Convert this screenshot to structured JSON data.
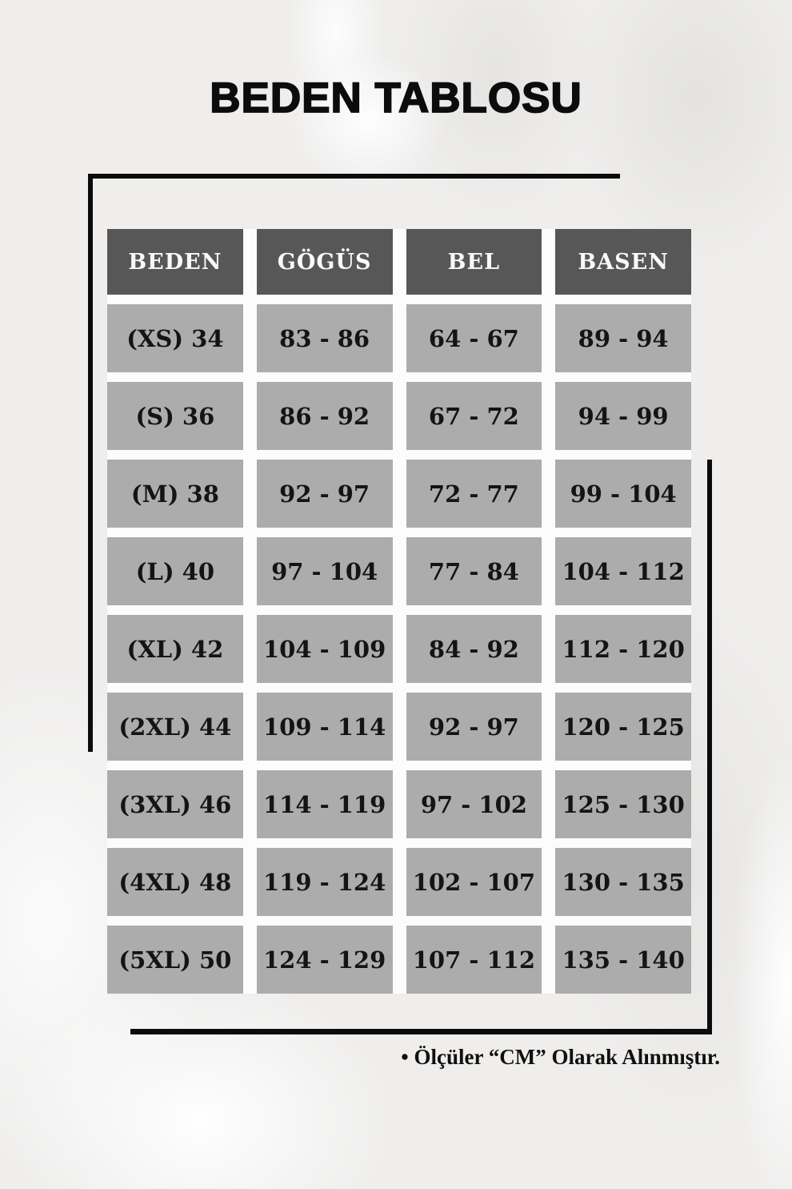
{
  "page_title": "BEDEN TABLOSU",
  "colors": {
    "background": "#efeeed",
    "header_cell_bg": "#585758",
    "header_cell_text": "#f8f8f8",
    "data_cell_bg": "#adacac",
    "data_cell_text": "#141414",
    "frame_line": "#0b0b0b"
  },
  "chart_data": {
    "type": "table",
    "title": "BEDEN TABLOSU",
    "columns": [
      "BEDEN",
      "GÖGÜS",
      "BEL",
      "BASEN"
    ],
    "rows": [
      [
        "(XS) 34",
        "83 - 86",
        "64 - 67",
        "89 - 94"
      ],
      [
        "(S) 36",
        "86 - 92",
        "67 - 72",
        "94 - 99"
      ],
      [
        "(M) 38",
        "92 - 97",
        "72 - 77",
        "99 - 104"
      ],
      [
        "(L) 40",
        "97 - 104",
        "77 - 84",
        "104 - 112"
      ],
      [
        "(XL) 42",
        "104 - 109",
        "84 - 92",
        "112 - 120"
      ],
      [
        "(2XL) 44",
        "109 - 114",
        "92 - 97",
        "120 - 125"
      ],
      [
        "(3XL) 46",
        "114 - 119",
        "97 - 102",
        "125 - 130"
      ],
      [
        "(4XL) 48",
        "119 - 124",
        "102 - 107",
        "130 - 135"
      ],
      [
        "(5XL) 50",
        "124 - 129",
        "107 - 112",
        "135 - 140"
      ]
    ],
    "footnote": "• Ölçüler “CM” Olarak Alınmıştır.",
    "units": "CM",
    "layout": {
      "header_position": "top",
      "grid": "off"
    }
  }
}
